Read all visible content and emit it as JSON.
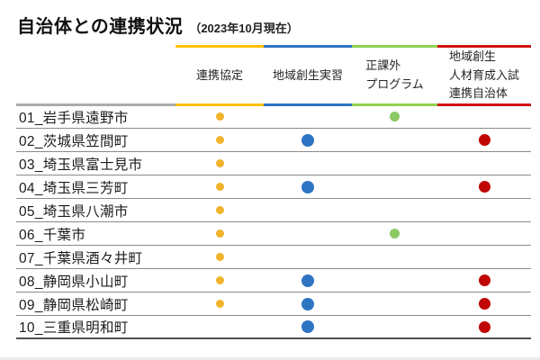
{
  "title": {
    "text": "自治体との連携状況",
    "note": "（2023年10月現在）"
  },
  "table": {
    "columns": [
      {
        "id": "partnership-agreement",
        "lines": [
          "連携協定"
        ],
        "line_color": "#FFC000",
        "dot_color": "#F0B32B",
        "dot_size": 9
      },
      {
        "id": "regional-internship",
        "lines": [
          "地域創生実習"
        ],
        "line_color": "#2E74C4",
        "dot_color": "#2E74C3",
        "dot_size": 14
      },
      {
        "id": "extracurricular-program",
        "lines": [
          "正課外",
          "プログラム"
        ],
        "line_color": "#92D050",
        "dot_color": "#8CC863",
        "dot_size": 11
      },
      {
        "id": "entrance-exam-partner",
        "lines": [
          "地域創生",
          "人材育成入試",
          "連携自治体"
        ],
        "line_color": "#D01111",
        "dot_color": "#C00505",
        "dot_size": 13
      }
    ],
    "rows": [
      {
        "label": "01_岩手県遠野市",
        "marks": [
          true,
          false,
          true,
          false
        ]
      },
      {
        "label": "02_茨城県笠間町",
        "marks": [
          true,
          true,
          false,
          true
        ]
      },
      {
        "label": "03_埼玉県富士見市",
        "marks": [
          true,
          false,
          false,
          false
        ]
      },
      {
        "label": "04_埼玉県三芳町",
        "marks": [
          true,
          true,
          false,
          true
        ]
      },
      {
        "label": "05_埼玉県八潮市",
        "marks": [
          true,
          false,
          false,
          false
        ]
      },
      {
        "label": "06_千葉市",
        "marks": [
          true,
          false,
          true,
          false
        ]
      },
      {
        "label": "07_千葉県酒々井町",
        "marks": [
          true,
          false,
          false,
          false
        ]
      },
      {
        "label": "08_静岡県小山町",
        "marks": [
          true,
          true,
          false,
          true
        ]
      },
      {
        "label": "09_静岡県松崎町",
        "marks": [
          true,
          true,
          false,
          true
        ]
      },
      {
        "label": "10_三重県明和町",
        "marks": [
          false,
          true,
          false,
          true
        ]
      }
    ]
  }
}
